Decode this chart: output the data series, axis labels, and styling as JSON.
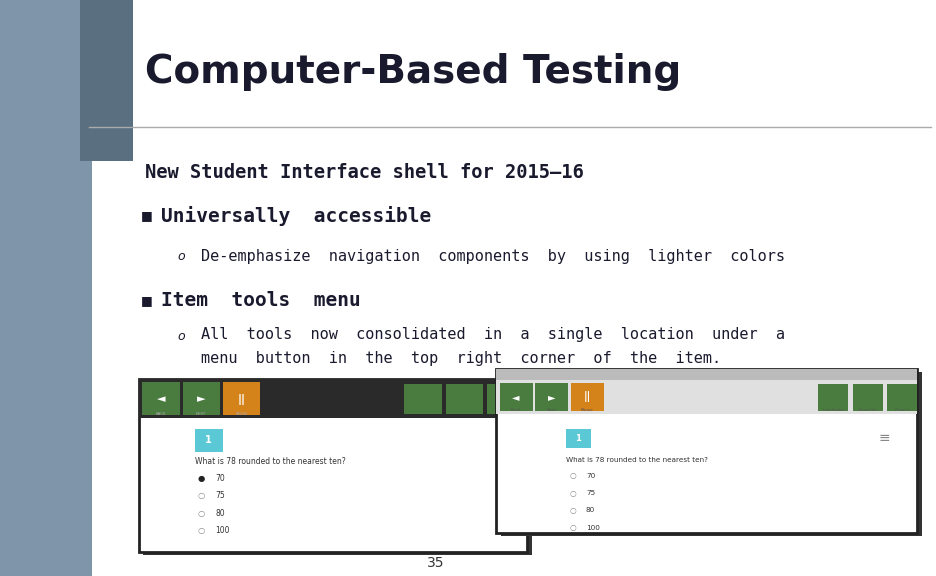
{
  "bg_color": "#7f96aa",
  "left_bar_dark": "#5a7080",
  "title": "Computer-Based Testing",
  "title_color": "#1a1a2e",
  "subtitle": "New Student Interface shell for 2015–16",
  "subtitle_color": "#1a1a2e",
  "bullet1": "Universally  accessible",
  "bullet1_color": "#1a1a2e",
  "sub_bullet1": "De-emphasize  navigation  components  by  using  lighter  colors",
  "sub_bullet1_color": "#1a1a2e",
  "bullet2": "Item  tools  menu",
  "bullet2_color": "#1a1a2e",
  "sub_bullet2_line1": "All  tools  now  consolidated  in  a  single  location  under  a",
  "sub_bullet2_line2": "menu  button  in  the  top  right  corner  of  the  item.",
  "sub_bullet2_color": "#1a1a2e",
  "page_number": "35",
  "page_number_color": "#333333"
}
